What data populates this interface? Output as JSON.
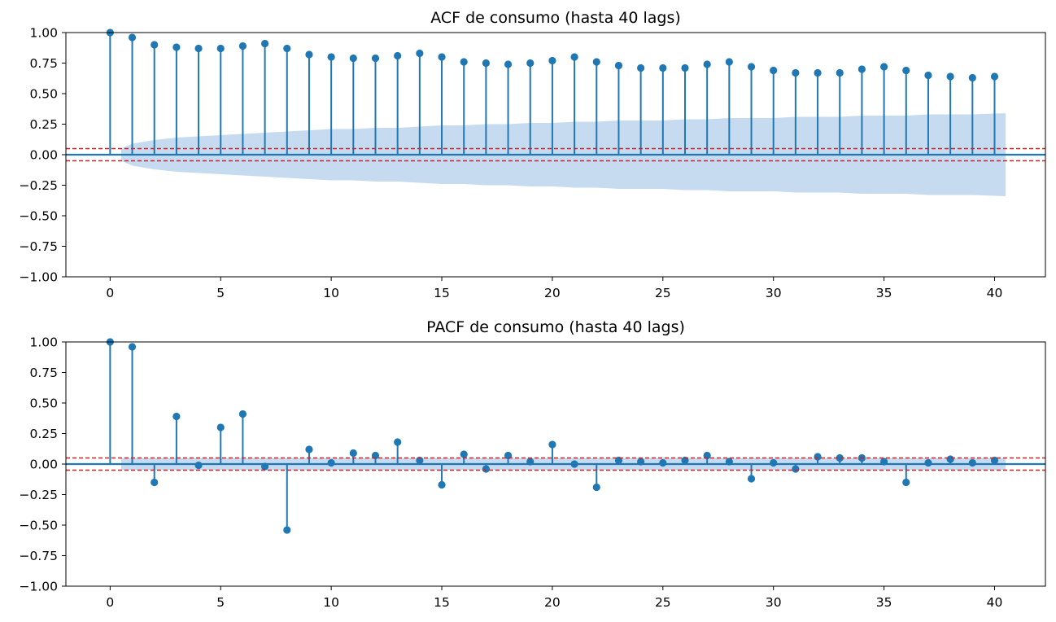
{
  "chart_data": [
    {
      "type": "stem",
      "title": "ACF de consumo (hasta 40 lags)",
      "xlabel": "",
      "ylabel": "",
      "xlim": [
        -2,
        42.3
      ],
      "ylim": [
        -1.0,
        1.0
      ],
      "xticks": [
        "0",
        "5",
        "10",
        "15",
        "20",
        "25",
        "30",
        "35",
        "40"
      ],
      "yticks": [
        "1.00",
        "0.75",
        "0.50",
        "0.25",
        "0.00",
        "−0.25",
        "−0.50",
        "−0.75",
        "−1.00"
      ],
      "grid": false,
      "x": [
        0,
        1,
        2,
        3,
        4,
        5,
        6,
        7,
        8,
        9,
        10,
        11,
        12,
        13,
        14,
        15,
        16,
        17,
        18,
        19,
        20,
        21,
        22,
        23,
        24,
        25,
        26,
        27,
        28,
        29,
        30,
        31,
        32,
        33,
        34,
        35,
        36,
        37,
        38,
        39,
        40
      ],
      "values": [
        1.0,
        0.96,
        0.9,
        0.88,
        0.87,
        0.87,
        0.89,
        0.91,
        0.87,
        0.82,
        0.8,
        0.79,
        0.79,
        0.81,
        0.83,
        0.8,
        0.76,
        0.75,
        0.74,
        0.75,
        0.77,
        0.8,
        0.76,
        0.73,
        0.71,
        0.71,
        0.71,
        0.74,
        0.76,
        0.72,
        0.69,
        0.67,
        0.67,
        0.67,
        0.7,
        0.72,
        0.69,
        0.65,
        0.64,
        0.63,
        0.64
      ],
      "confidence_band": [
        0.05,
        0.09,
        0.12,
        0.14,
        0.15,
        0.16,
        0.17,
        0.18,
        0.19,
        0.2,
        0.21,
        0.21,
        0.22,
        0.22,
        0.23,
        0.24,
        0.24,
        0.25,
        0.25,
        0.26,
        0.26,
        0.27,
        0.27,
        0.28,
        0.28,
        0.28,
        0.29,
        0.29,
        0.3,
        0.3,
        0.3,
        0.31,
        0.31,
        0.31,
        0.32,
        0.32,
        0.32,
        0.33,
        0.33,
        0.33,
        0.34
      ],
      "reference_lines": [
        0.05,
        -0.05
      ],
      "colors": {
        "stem": "#1f77b4",
        "band": "#c6dbef",
        "reference": "#e6191b"
      }
    },
    {
      "type": "stem",
      "title": "PACF de consumo (hasta 40 lags)",
      "xlabel": "",
      "ylabel": "",
      "xlim": [
        -2,
        42.3
      ],
      "ylim": [
        -1.0,
        1.0
      ],
      "xticks": [
        "0",
        "5",
        "10",
        "15",
        "20",
        "25",
        "30",
        "35",
        "40"
      ],
      "yticks": [
        "1.00",
        "0.75",
        "0.50",
        "0.25",
        "0.00",
        "−0.25",
        "−0.50",
        "−0.75",
        "−1.00"
      ],
      "grid": false,
      "x": [
        0,
        1,
        2,
        3,
        4,
        5,
        6,
        7,
        8,
        9,
        10,
        11,
        12,
        13,
        14,
        15,
        16,
        17,
        18,
        19,
        20,
        21,
        22,
        23,
        24,
        25,
        26,
        27,
        28,
        29,
        30,
        31,
        32,
        33,
        34,
        35,
        36,
        37,
        38,
        39,
        40
      ],
      "values": [
        1.0,
        0.96,
        -0.15,
        0.39,
        -0.01,
        0.3,
        0.41,
        -0.02,
        -0.54,
        0.12,
        0.01,
        0.09,
        0.07,
        0.18,
        0.03,
        -0.17,
        0.08,
        -0.04,
        0.07,
        0.02,
        0.16,
        0.0,
        -0.19,
        0.03,
        0.02,
        0.01,
        0.03,
        0.07,
        0.02,
        -0.12,
        0.01,
        -0.04,
        0.06,
        0.05,
        0.05,
        0.02,
        -0.15,
        0.01,
        0.04,
        0.01,
        0.03
      ],
      "confidence_band": [
        0.05,
        0.05,
        0.05,
        0.05,
        0.05,
        0.05,
        0.05,
        0.05,
        0.05,
        0.05,
        0.05,
        0.05,
        0.05,
        0.05,
        0.05,
        0.05,
        0.05,
        0.05,
        0.05,
        0.05,
        0.05,
        0.05,
        0.05,
        0.05,
        0.05,
        0.05,
        0.05,
        0.05,
        0.05,
        0.05,
        0.05,
        0.05,
        0.05,
        0.05,
        0.05,
        0.05,
        0.05,
        0.05,
        0.05,
        0.05,
        0.05
      ],
      "reference_lines": [
        0.05,
        -0.05
      ],
      "colors": {
        "stem": "#1f77b4",
        "band": "#c6dbef",
        "reference": "#e6191b"
      }
    }
  ]
}
